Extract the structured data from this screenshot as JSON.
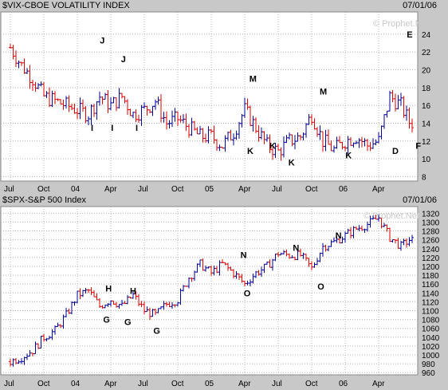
{
  "chart_data": [
    {
      "type": "ohlc",
      "title": "$VIX-CBOE VOLATILITY INDEX",
      "date": "07/01/06",
      "watermark": "© Prophet.Net",
      "ylim": [
        7.5,
        26.5
      ],
      "yticks": [
        8,
        10,
        12,
        14,
        16,
        18,
        20,
        22,
        24
      ],
      "xticks": [
        "Jul",
        "Oct",
        "04",
        "Apr",
        "Jul",
        "Oct",
        "05",
        "Apr",
        "Jul",
        "Oct",
        "06",
        "Apr"
      ],
      "colors": {
        "up": "#000099",
        "down": "#dd0000",
        "background": "#ffffff",
        "grid": "#b4b4b4"
      },
      "annotations": [
        "I",
        "J",
        "I",
        "J",
        "I",
        "M",
        "K",
        "K",
        "K",
        "M",
        "K",
        "D",
        "E",
        "F"
      ],
      "series": [
        {
          "date": "2003-07",
          "value": 22.5
        },
        {
          "date": "2003-08",
          "value": 20.5
        },
        {
          "date": "2003-09",
          "value": 19.0
        },
        {
          "date": "2003-10",
          "value": 17.0
        },
        {
          "date": "2003-11",
          "value": 16.5
        },
        {
          "date": "2003-12",
          "value": 16.0
        },
        {
          "date": "2004-01",
          "value": 15.5
        },
        {
          "date": "2004-02",
          "value": 15.0
        },
        {
          "date": "2004-03",
          "value": 17.0
        },
        {
          "date": "2004-04",
          "value": 16.0
        },
        {
          "date": "2004-05",
          "value": 17.0
        },
        {
          "date": "2004-06",
          "value": 15.0
        },
        {
          "date": "2004-07",
          "value": 15.5
        },
        {
          "date": "2004-08",
          "value": 16.5
        },
        {
          "date": "2004-09",
          "value": 14.0
        },
        {
          "date": "2004-10",
          "value": 14.5
        },
        {
          "date": "2004-11",
          "value": 13.5
        },
        {
          "date": "2004-12",
          "value": 12.5
        },
        {
          "date": "2005-01",
          "value": 12.5
        },
        {
          "date": "2005-02",
          "value": 11.5
        },
        {
          "date": "2005-03",
          "value": 13.0
        },
        {
          "date": "2005-04",
          "value": 15.5
        },
        {
          "date": "2005-05",
          "value": 13.5
        },
        {
          "date": "2005-06",
          "value": 11.5
        },
        {
          "date": "2005-07",
          "value": 10.8
        },
        {
          "date": "2005-08",
          "value": 12.0
        },
        {
          "date": "2005-09",
          "value": 12.5
        },
        {
          "date": "2005-10",
          "value": 15.0
        },
        {
          "date": "2005-11",
          "value": 12.0
        },
        {
          "date": "2005-12",
          "value": 11.0
        },
        {
          "date": "2006-01",
          "value": 12.0
        },
        {
          "date": "2006-02",
          "value": 12.5
        },
        {
          "date": "2006-03",
          "value": 11.5
        },
        {
          "date": "2006-04",
          "value": 12.0
        },
        {
          "date": "2006-05",
          "value": 17.0
        },
        {
          "date": "2006-06",
          "value": 16.0
        },
        {
          "date": "2006-07",
          "value": 13.5
        }
      ]
    },
    {
      "type": "ohlc",
      "title": "$SPX-S&P 500 Index",
      "date": "07/01/06",
      "watermark": "© Prophet.Net",
      "ylim": [
        955,
        1335
      ],
      "yticks": [
        960,
        980,
        1000,
        1020,
        1040,
        1060,
        1080,
        1100,
        1120,
        1140,
        1160,
        1180,
        1200,
        1220,
        1240,
        1260,
        1280,
        1300,
        1320
      ],
      "xticks": [
        "Jul",
        "Oct",
        "04",
        "Apr",
        "Jul",
        "Oct",
        "05",
        "Apr",
        "Jul",
        "Oct",
        "06",
        "Apr"
      ],
      "colors": {
        "up": "#000099",
        "down": "#dd0000",
        "background": "#ffffff",
        "grid": "#b4b4b4"
      },
      "annotations": [
        "H",
        "G",
        "H",
        "G",
        "G",
        "N",
        "O",
        "N",
        "O",
        "N"
      ],
      "series": [
        {
          "date": "2003-07",
          "value": 985
        },
        {
          "date": "2003-08",
          "value": 995
        },
        {
          "date": "2003-09",
          "value": 1010
        },
        {
          "date": "2003-10",
          "value": 1040
        },
        {
          "date": "2003-11",
          "value": 1055
        },
        {
          "date": "2003-12",
          "value": 1090
        },
        {
          "date": "2004-01",
          "value": 1135
        },
        {
          "date": "2004-02",
          "value": 1145
        },
        {
          "date": "2004-03",
          "value": 1110
        },
        {
          "date": "2004-04",
          "value": 1125
        },
        {
          "date": "2004-05",
          "value": 1110
        },
        {
          "date": "2004-06",
          "value": 1135
        },
        {
          "date": "2004-07",
          "value": 1100
        },
        {
          "date": "2004-08",
          "value": 1090
        },
        {
          "date": "2004-09",
          "value": 1115
        },
        {
          "date": "2004-10",
          "value": 1125
        },
        {
          "date": "2004-11",
          "value": 1175
        },
        {
          "date": "2004-12",
          "value": 1205
        },
        {
          "date": "2005-01",
          "value": 1185
        },
        {
          "date": "2005-02",
          "value": 1205
        },
        {
          "date": "2005-03",
          "value": 1185
        },
        {
          "date": "2005-04",
          "value": 1160
        },
        {
          "date": "2005-05",
          "value": 1185
        },
        {
          "date": "2005-06",
          "value": 1200
        },
        {
          "date": "2005-07",
          "value": 1230
        },
        {
          "date": "2005-08",
          "value": 1225
        },
        {
          "date": "2005-09",
          "value": 1225
        },
        {
          "date": "2005-10",
          "value": 1195
        },
        {
          "date": "2005-11",
          "value": 1245
        },
        {
          "date": "2005-12",
          "value": 1255
        },
        {
          "date": "2006-01",
          "value": 1270
        },
        {
          "date": "2006-02",
          "value": 1285
        },
        {
          "date": "2006-03",
          "value": 1295
        },
        {
          "date": "2006-04",
          "value": 1310
        },
        {
          "date": "2006-05",
          "value": 1265
        },
        {
          "date": "2006-06",
          "value": 1245
        },
        {
          "date": "2006-07",
          "value": 1265
        }
      ]
    }
  ]
}
